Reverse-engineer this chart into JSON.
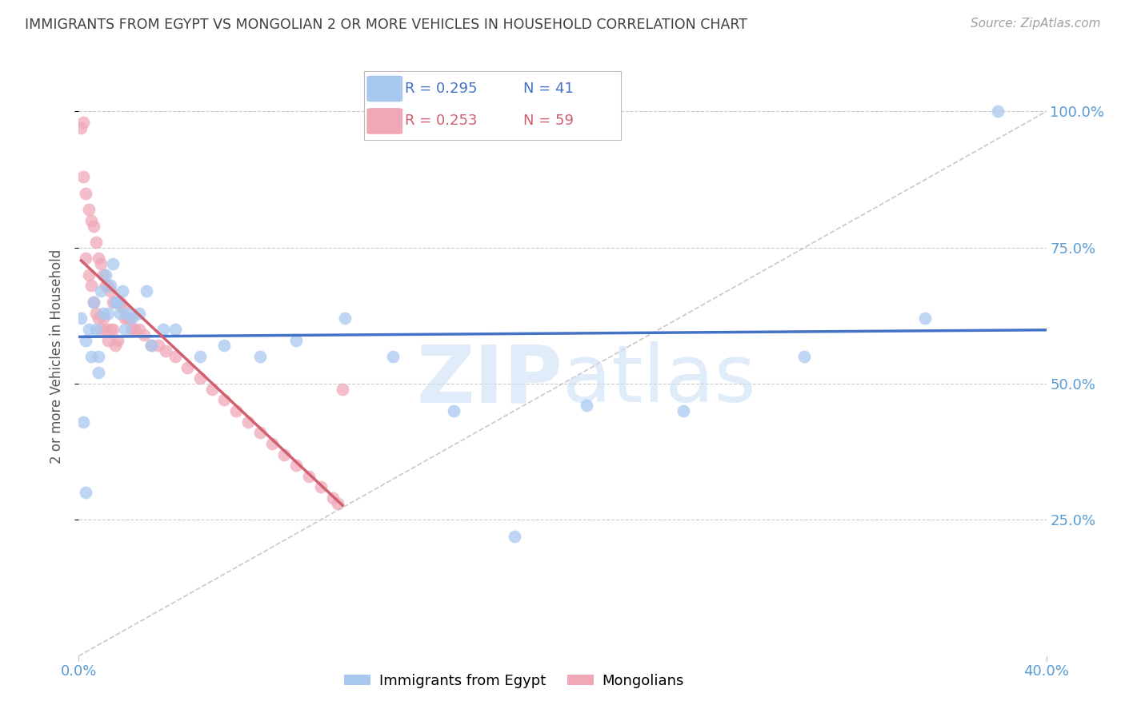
{
  "title": "IMMIGRANTS FROM EGYPT VS MONGOLIAN 2 OR MORE VEHICLES IN HOUSEHOLD CORRELATION CHART",
  "source": "Source: ZipAtlas.com",
  "ylabel": "2 or more Vehicles in Household",
  "xlim": [
    0.0,
    0.4
  ],
  "ylim": [
    0.0,
    1.1
  ],
  "yticks": [
    0.25,
    0.5,
    0.75,
    1.0
  ],
  "ytick_labels": [
    "25.0%",
    "50.0%",
    "75.0%",
    "100.0%"
  ],
  "color_blue": "#a8c8f0",
  "color_pink": "#f0a8b8",
  "color_blue_line": "#4472C4",
  "color_pink_line": "#d06070",
  "color_diag": "#C8C8C8",
  "color_right_axis": "#5B9BD5",
  "color_title": "#404040",
  "color_source": "#A0A0A0",
  "watermark_zip": "ZIP",
  "watermark_atlas": "atlas",
  "bg_color": "#FFFFFF",
  "grid_color": "#CCCCCC",
  "legend_r1": "R = 0.295",
  "legend_n1": "N = 41",
  "legend_r2": "R = 0.253",
  "legend_n2": "N = 59",
  "egypt_x": [
    0.001,
    0.002,
    0.003,
    0.004,
    0.005,
    0.006,
    0.007,
    0.008,
    0.009,
    0.01,
    0.011,
    0.012,
    0.013,
    0.014,
    0.015,
    0.016,
    0.017,
    0.018,
    0.019,
    0.02,
    0.022,
    0.025,
    0.028,
    0.03,
    0.035,
    0.04,
    0.05,
    0.06,
    0.075,
    0.09,
    0.11,
    0.13,
    0.155,
    0.18,
    0.21,
    0.25,
    0.3,
    0.35,
    0.003,
    0.008,
    0.38
  ],
  "egypt_y": [
    0.62,
    0.43,
    0.58,
    0.6,
    0.55,
    0.65,
    0.6,
    0.55,
    0.67,
    0.63,
    0.7,
    0.63,
    0.68,
    0.72,
    0.65,
    0.65,
    0.63,
    0.67,
    0.6,
    0.63,
    0.62,
    0.63,
    0.67,
    0.57,
    0.6,
    0.6,
    0.55,
    0.57,
    0.55,
    0.58,
    0.62,
    0.55,
    0.45,
    0.22,
    0.46,
    0.45,
    0.55,
    0.62,
    0.3,
    0.52,
    1.0
  ],
  "mongol_x": [
    0.001,
    0.002,
    0.002,
    0.003,
    0.003,
    0.004,
    0.004,
    0.005,
    0.005,
    0.006,
    0.006,
    0.007,
    0.007,
    0.008,
    0.008,
    0.009,
    0.009,
    0.01,
    0.01,
    0.011,
    0.011,
    0.012,
    0.012,
    0.013,
    0.013,
    0.014,
    0.014,
    0.015,
    0.015,
    0.016,
    0.016,
    0.017,
    0.018,
    0.019,
    0.02,
    0.021,
    0.022,
    0.023,
    0.025,
    0.027,
    0.03,
    0.033,
    0.036,
    0.04,
    0.045,
    0.05,
    0.055,
    0.06,
    0.065,
    0.07,
    0.075,
    0.08,
    0.085,
    0.09,
    0.095,
    0.1,
    0.105,
    0.107,
    0.109
  ],
  "mongol_y": [
    0.97,
    0.98,
    0.88,
    0.85,
    0.73,
    0.82,
    0.7,
    0.8,
    0.68,
    0.79,
    0.65,
    0.76,
    0.63,
    0.73,
    0.62,
    0.72,
    0.6,
    0.7,
    0.62,
    0.68,
    0.6,
    0.68,
    0.58,
    0.67,
    0.6,
    0.65,
    0.6,
    0.65,
    0.57,
    0.65,
    0.58,
    0.65,
    0.64,
    0.62,
    0.62,
    0.62,
    0.6,
    0.6,
    0.6,
    0.59,
    0.57,
    0.57,
    0.56,
    0.55,
    0.53,
    0.51,
    0.49,
    0.47,
    0.45,
    0.43,
    0.41,
    0.39,
    0.37,
    0.35,
    0.33,
    0.31,
    0.29,
    0.28,
    0.49
  ]
}
